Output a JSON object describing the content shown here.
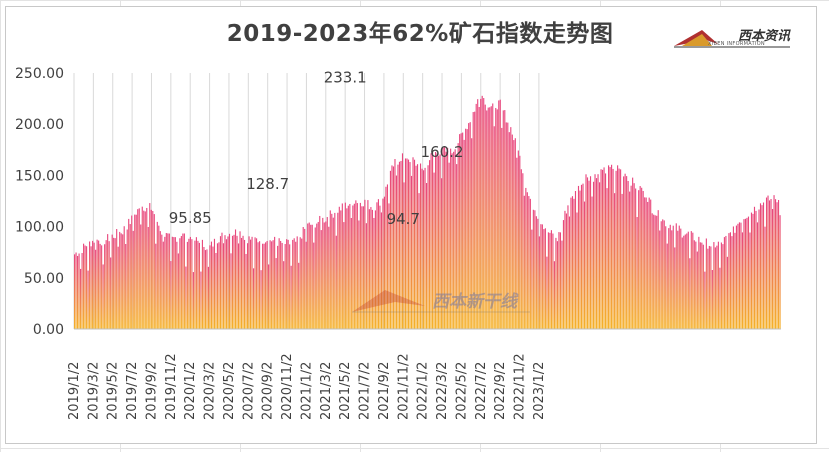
{
  "chart_data": {
    "type": "bar",
    "title": "2019-2023年62%矿石指数走势图",
    "xlabel": "",
    "ylabel": "",
    "ylim": [
      0,
      250
    ],
    "yticks": [
      "0.00",
      "50.00",
      "100.00",
      "150.00",
      "200.00",
      "250.00"
    ],
    "grid": "vertical-gridlines",
    "legend": "none",
    "categories": [
      "2019/1/2",
      "2019/3/2",
      "2019/5/2",
      "2019/7/2",
      "2019/9/2",
      "2019/11/2",
      "2020/1/2",
      "2020/3/2",
      "2020/5/2",
      "2020/7/2",
      "2020/9/2",
      "2020/11/2",
      "2021/1/2",
      "2021/3/2",
      "2021/5/2",
      "2021/7/2",
      "2021/9/2",
      "2021/11/2",
      "2022/1/2",
      "2022/3/2",
      "2022/5/2",
      "2022/7/2",
      "2022/9/2",
      "2022/11/2",
      "2023/1/2"
    ],
    "series_anchor_months": [
      0,
      1,
      2,
      3,
      4,
      5,
      6,
      7,
      8,
      9,
      10,
      11,
      12,
      13,
      14,
      15,
      16,
      17,
      18,
      19,
      20,
      21,
      22,
      23,
      24,
      25,
      26,
      27,
      28,
      29,
      30,
      31,
      32,
      33,
      34,
      35,
      36,
      37,
      38,
      39,
      40,
      41,
      42,
      43,
      44,
      45,
      46,
      47,
      48,
      49,
      50,
      51,
      52,
      53,
      54,
      55,
      56,
      57,
      58,
      59,
      60,
      61,
      62,
      63,
      64,
      65,
      66
    ],
    "series_anchor_values": [
      73,
      80,
      87,
      86,
      91,
      96,
      108,
      120,
      118,
      95,
      87,
      92,
      89,
      84,
      80,
      90,
      93,
      95,
      88,
      87,
      88,
      85,
      83,
      85,
      100,
      104,
      108,
      115,
      120,
      126,
      124,
      118,
      130,
      160,
      170,
      165,
      155,
      170,
      175,
      172,
      188,
      205,
      230,
      218,
      220,
      200,
      170,
      130,
      110,
      95,
      88,
      120,
      135,
      150,
      148,
      155,
      158,
      152,
      140,
      135,
      115,
      105,
      100,
      95,
      90,
      85,
      82
    ],
    "series_tail_values": [
      84,
      95,
      108,
      115,
      122,
      127,
      126
    ],
    "gradient": {
      "top": "#e8457f",
      "bottom": "#f5b228"
    },
    "annotations": [
      {
        "text": "95.85",
        "x": "2020/1/2",
        "y": 95.85
      },
      {
        "text": "128.7",
        "x": "2020/9/2",
        "y": 128.7
      },
      {
        "text": "233.1",
        "x": "2021/5/2",
        "y": 233.1
      },
      {
        "text": "94.7",
        "x": "2021/11/2",
        "y": 94.7
      },
      {
        "text": "160.2",
        "x": "2022/3/2",
        "y": 160.2
      }
    ]
  },
  "logo": {
    "text": "西本资讯",
    "sub": "XIBEN INFORMATION"
  },
  "watermark": {
    "text": "西本新干线"
  },
  "colors": {
    "title": "#404040",
    "axis_text": "#404040",
    "gridline": "#d9d9d9"
  }
}
